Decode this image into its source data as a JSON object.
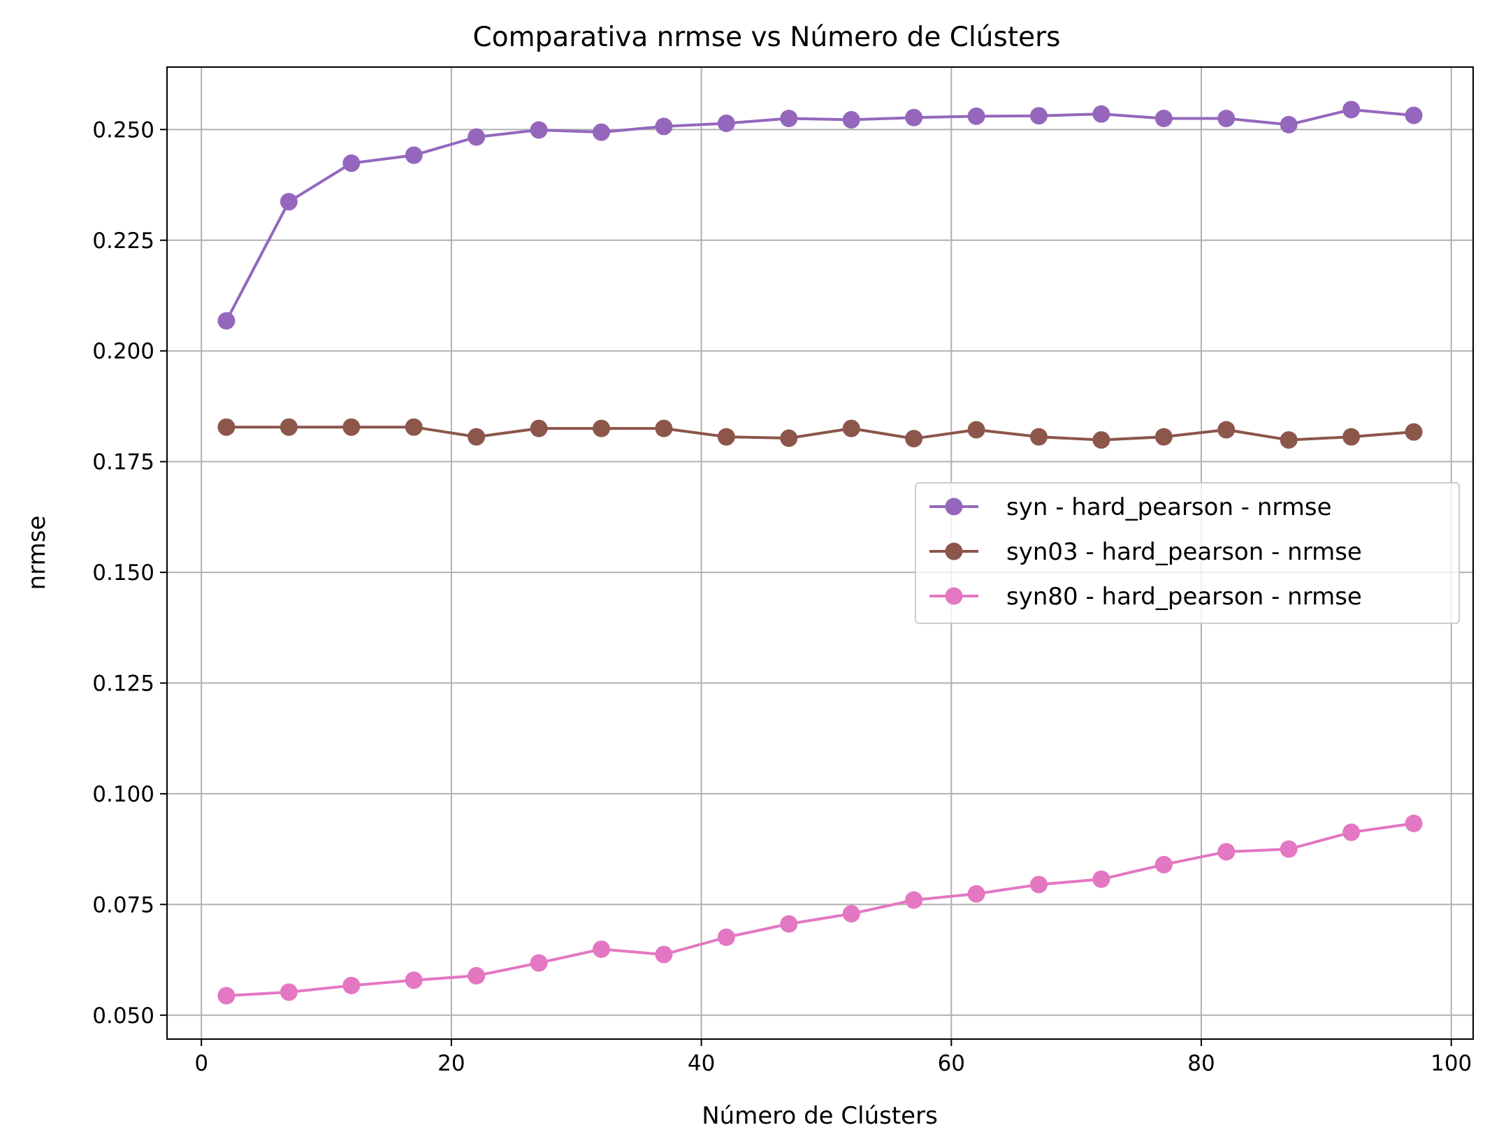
{
  "chart_data": {
    "type": "line",
    "title": "Comparativa nrmse vs Número de Clústers",
    "xlabel": "Número de Clústers",
    "ylabel": "nrmse",
    "xlim": [
      -2.75,
      101.75
    ],
    "ylim": [
      0.0446,
      0.2641
    ],
    "xticks": [
      0,
      20,
      40,
      60,
      80,
      100
    ],
    "xtick_labels": [
      "0",
      "20",
      "40",
      "60",
      "80",
      "100"
    ],
    "yticks": [
      0.05,
      0.075,
      0.1,
      0.125,
      0.15,
      0.175,
      0.2,
      0.225,
      0.25
    ],
    "ytick_labels": [
      "0.050",
      "0.075",
      "0.100",
      "0.125",
      "0.150",
      "0.175",
      "0.200",
      "0.225",
      "0.250"
    ],
    "grid": true,
    "legend_position": "center-right",
    "x": [
      2,
      7,
      12,
      17,
      22,
      27,
      32,
      37,
      42,
      47,
      52,
      57,
      62,
      67,
      72,
      77,
      82,
      87,
      92,
      97
    ],
    "series": [
      {
        "name": "syn - hard_pearson - nrmse",
        "color": "#9467bd",
        "marker": "circle",
        "values": [
          0.2068,
          0.2337,
          0.2424,
          0.2442,
          0.2483,
          0.2499,
          0.2494,
          0.2507,
          0.2514,
          0.2525,
          0.2522,
          0.2527,
          0.253,
          0.2531,
          0.2535,
          0.2525,
          0.2525,
          0.2511,
          0.2545,
          0.2532
        ]
      },
      {
        "name": "syn03 - hard_pearson - nrmse",
        "color": "#8c564b",
        "marker": "circle",
        "values": [
          0.1828,
          0.1828,
          0.1828,
          0.1828,
          0.1806,
          0.1825,
          0.1825,
          0.1825,
          0.1806,
          0.1803,
          0.1825,
          0.1802,
          0.1822,
          0.1806,
          0.1799,
          0.1806,
          0.1822,
          0.1799,
          0.1806,
          0.1817
        ]
      },
      {
        "name": "syn80 - hard_pearson - nrmse",
        "color": "#e377c2",
        "marker": "circle",
        "values": [
          0.0544,
          0.0552,
          0.0567,
          0.0579,
          0.0589,
          0.0618,
          0.0649,
          0.0637,
          0.0676,
          0.0706,
          0.0729,
          0.076,
          0.0774,
          0.0795,
          0.0807,
          0.084,
          0.0869,
          0.0875,
          0.0913,
          0.0933
        ]
      }
    ]
  }
}
